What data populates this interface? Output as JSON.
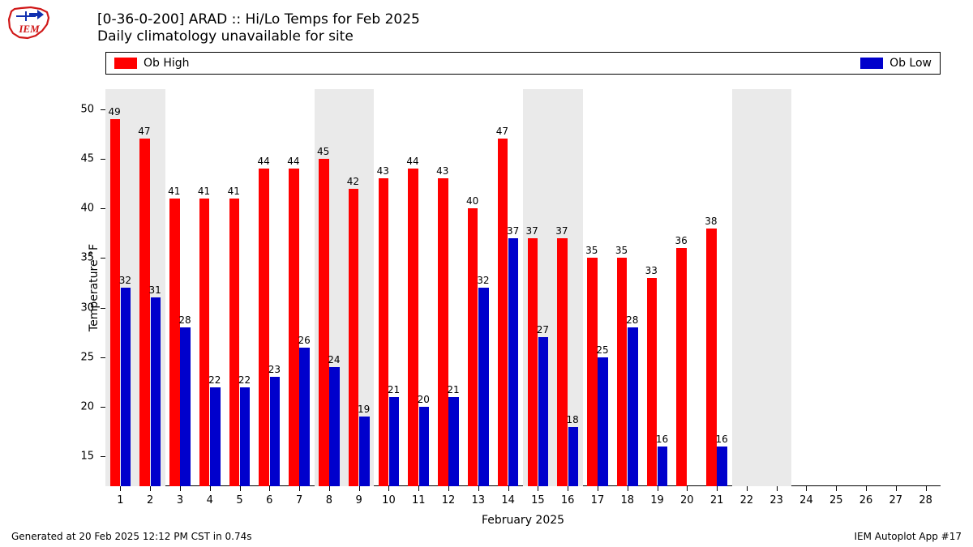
{
  "logo": {
    "text": "IEM",
    "outline_color": "#d01818",
    "accent_color": "#1030b0"
  },
  "title_line1": "[0-36-0-200] ARAD :: Hi/Lo Temps for Feb 2025",
  "title_line2": "Daily climatology unavailable for site",
  "legend": {
    "high": {
      "label": "Ob High",
      "color": "#ff0000"
    },
    "low": {
      "label": "Ob Low",
      "color": "#0000cc"
    }
  },
  "chart": {
    "type": "bar",
    "x_label": "February 2025",
    "y_label": "Temperature °F",
    "y_min": 12,
    "y_max": 52,
    "y_ticks": [
      15,
      20,
      25,
      30,
      35,
      40,
      45,
      50
    ],
    "days": [
      1,
      2,
      3,
      4,
      5,
      6,
      7,
      8,
      9,
      10,
      11,
      12,
      13,
      14,
      15,
      16,
      17,
      18,
      19,
      20,
      21,
      22,
      23,
      24,
      25,
      26,
      27,
      28
    ],
    "weekend_bands": [
      [
        1,
        2
      ],
      [
        8,
        9
      ],
      [
        15,
        16
      ],
      [
        22,
        23
      ]
    ],
    "weekend_color": "#eaeaea",
    "background_color": "#ffffff",
    "bar_high_color": "#ff0000",
    "bar_low_color": "#0000cc",
    "label_fontsize": 12,
    "axis_fontsize": 13,
    "high": [
      49,
      47,
      41,
      41,
      41,
      44,
      44,
      45,
      42,
      43,
      44,
      43,
      40,
      47,
      37,
      37,
      35,
      35,
      33,
      36,
      38,
      null,
      null,
      null,
      null,
      null,
      null,
      null
    ],
    "low": [
      32,
      31,
      28,
      22,
      22,
      23,
      26,
      24,
      19,
      21,
      20,
      21,
      32,
      37,
      27,
      18,
      25,
      28,
      16,
      16,
      null,
      null,
      null,
      null,
      null,
      null,
      null,
      null
    ],
    "low_x_offset": [
      0,
      0,
      0,
      0,
      0,
      0,
      0,
      0,
      0,
      0,
      0,
      0,
      0,
      0,
      0,
      0,
      0,
      0,
      0,
      1,
      0,
      0,
      0,
      0,
      0,
      0,
      0,
      0
    ]
  },
  "footer_left": "Generated at 20 Feb 2025 12:12 PM CST in 0.74s",
  "footer_right": "IEM Autoplot App #17"
}
